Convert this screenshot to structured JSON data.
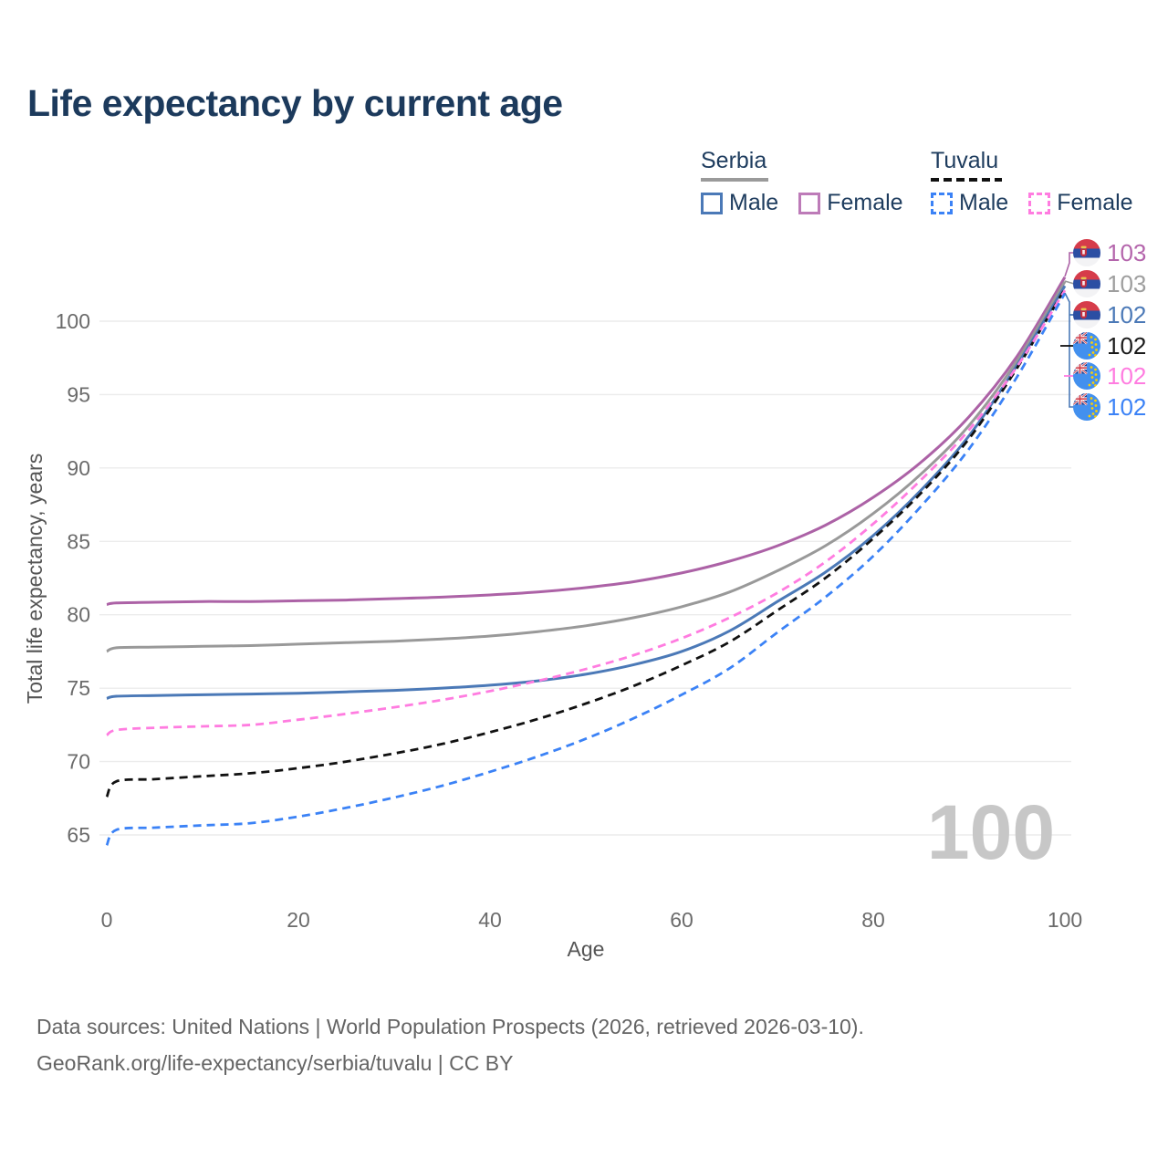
{
  "title": "Life expectancy by current age",
  "legend": {
    "groups": [
      {
        "country": "Serbia",
        "style": "solid",
        "items": [
          {
            "label": "Male",
            "color": "#4b79b7"
          },
          {
            "label": "Female",
            "color": "#bd7bb8"
          }
        ]
      },
      {
        "country": "Tuvalu",
        "style": "dashed",
        "items": [
          {
            "label": "Male",
            "color": "#3b82f6"
          },
          {
            "label": "Female",
            "color": "#ff7ce0"
          }
        ]
      }
    ]
  },
  "watermark": "100",
  "footer": {
    "line1": "Data sources: United Nations | World Population Prospects (2026, retrieved 2026-03-10).",
    "line2": "GeoRank.org/life-expectancy/serbia/tuvalu | CC BY"
  },
  "chart_data": {
    "type": "line",
    "title": "Life expectancy by current age",
    "xlabel": "Age",
    "ylabel": "Total life expectancy, years",
    "x_ticks": [
      0,
      20,
      40,
      60,
      80,
      100
    ],
    "y_ticks": [
      65,
      70,
      75,
      80,
      85,
      90,
      95,
      100
    ],
    "xlim": [
      0,
      100
    ],
    "ylim": [
      63,
      104
    ],
    "grid": true,
    "legend_position": "top-right",
    "ages": [
      0,
      1,
      5,
      10,
      15,
      20,
      25,
      30,
      35,
      40,
      45,
      50,
      55,
      60,
      65,
      70,
      75,
      80,
      85,
      90,
      95,
      100
    ],
    "series": [
      {
        "name": "Serbia Female",
        "country": "Serbia",
        "sex": "Female",
        "line": "solid",
        "color": "#ac62a6",
        "label_color": "#b465ac",
        "end_label": "103",
        "flag": "serbia",
        "values": [
          80.7,
          80.8,
          80.85,
          80.9,
          80.9,
          80.95,
          81.0,
          81.1,
          81.2,
          81.35,
          81.55,
          81.85,
          82.25,
          82.85,
          83.65,
          84.7,
          86.1,
          88.0,
          90.4,
          93.5,
          97.6,
          103.0
        ]
      },
      {
        "name": "Serbia (both sexes)",
        "country": "Serbia",
        "sex": "Both",
        "line": "solid",
        "color": "#999999",
        "label_color": "#9e9e9e",
        "end_label": "103",
        "flag": "serbia",
        "values": [
          77.5,
          77.75,
          77.8,
          77.85,
          77.9,
          78.0,
          78.1,
          78.2,
          78.35,
          78.55,
          78.85,
          79.25,
          79.8,
          80.55,
          81.55,
          83.0,
          84.7,
          86.9,
          89.6,
          92.9,
          97.3,
          102.7
        ]
      },
      {
        "name": "Serbia Male",
        "country": "Serbia",
        "sex": "Male",
        "line": "solid",
        "color": "#4b79b7",
        "label_color": "#4b79b7",
        "end_label": "102",
        "flag": "serbia",
        "values": [
          74.3,
          74.45,
          74.5,
          74.55,
          74.6,
          74.65,
          74.75,
          74.85,
          75.0,
          75.2,
          75.5,
          75.95,
          76.6,
          77.5,
          78.9,
          80.9,
          82.9,
          85.4,
          88.5,
          92.2,
          97.0,
          102.4
        ]
      },
      {
        "name": "Tuvalu (both sexes)",
        "country": "Tuvalu",
        "sex": "Both",
        "line": "dashed",
        "color": "#111111",
        "label_color": "#1a1a1a",
        "end_label": "102",
        "flag": "tuvalu",
        "values": [
          67.6,
          68.65,
          68.8,
          69.0,
          69.2,
          69.55,
          70.0,
          70.55,
          71.2,
          72.0,
          72.9,
          73.95,
          75.15,
          76.55,
          78.15,
          80.3,
          82.5,
          85.2,
          88.3,
          92.0,
          96.8,
          102.2
        ]
      },
      {
        "name": "Tuvalu Female",
        "country": "Tuvalu",
        "sex": "Female",
        "line": "dashed",
        "color": "#ff7ce0",
        "label_color": "#ff7ce0",
        "end_label": "102",
        "flag": "tuvalu",
        "values": [
          71.8,
          72.15,
          72.3,
          72.4,
          72.5,
          72.85,
          73.25,
          73.7,
          74.2,
          74.8,
          75.5,
          76.3,
          77.25,
          78.4,
          79.8,
          81.5,
          83.6,
          86.2,
          89.2,
          92.6,
          96.9,
          102.1
        ]
      },
      {
        "name": "Tuvalu Male",
        "country": "Tuvalu",
        "sex": "Male",
        "line": "dashed",
        "color": "#3b82f6",
        "label_color": "#3b82f6",
        "end_label": "102",
        "flag": "tuvalu",
        "values": [
          64.3,
          65.35,
          65.5,
          65.65,
          65.8,
          66.25,
          66.85,
          67.55,
          68.35,
          69.3,
          70.35,
          71.55,
          72.95,
          74.55,
          76.35,
          78.8,
          81.2,
          84.0,
          87.4,
          91.3,
          96.2,
          101.9
        ]
      }
    ]
  }
}
